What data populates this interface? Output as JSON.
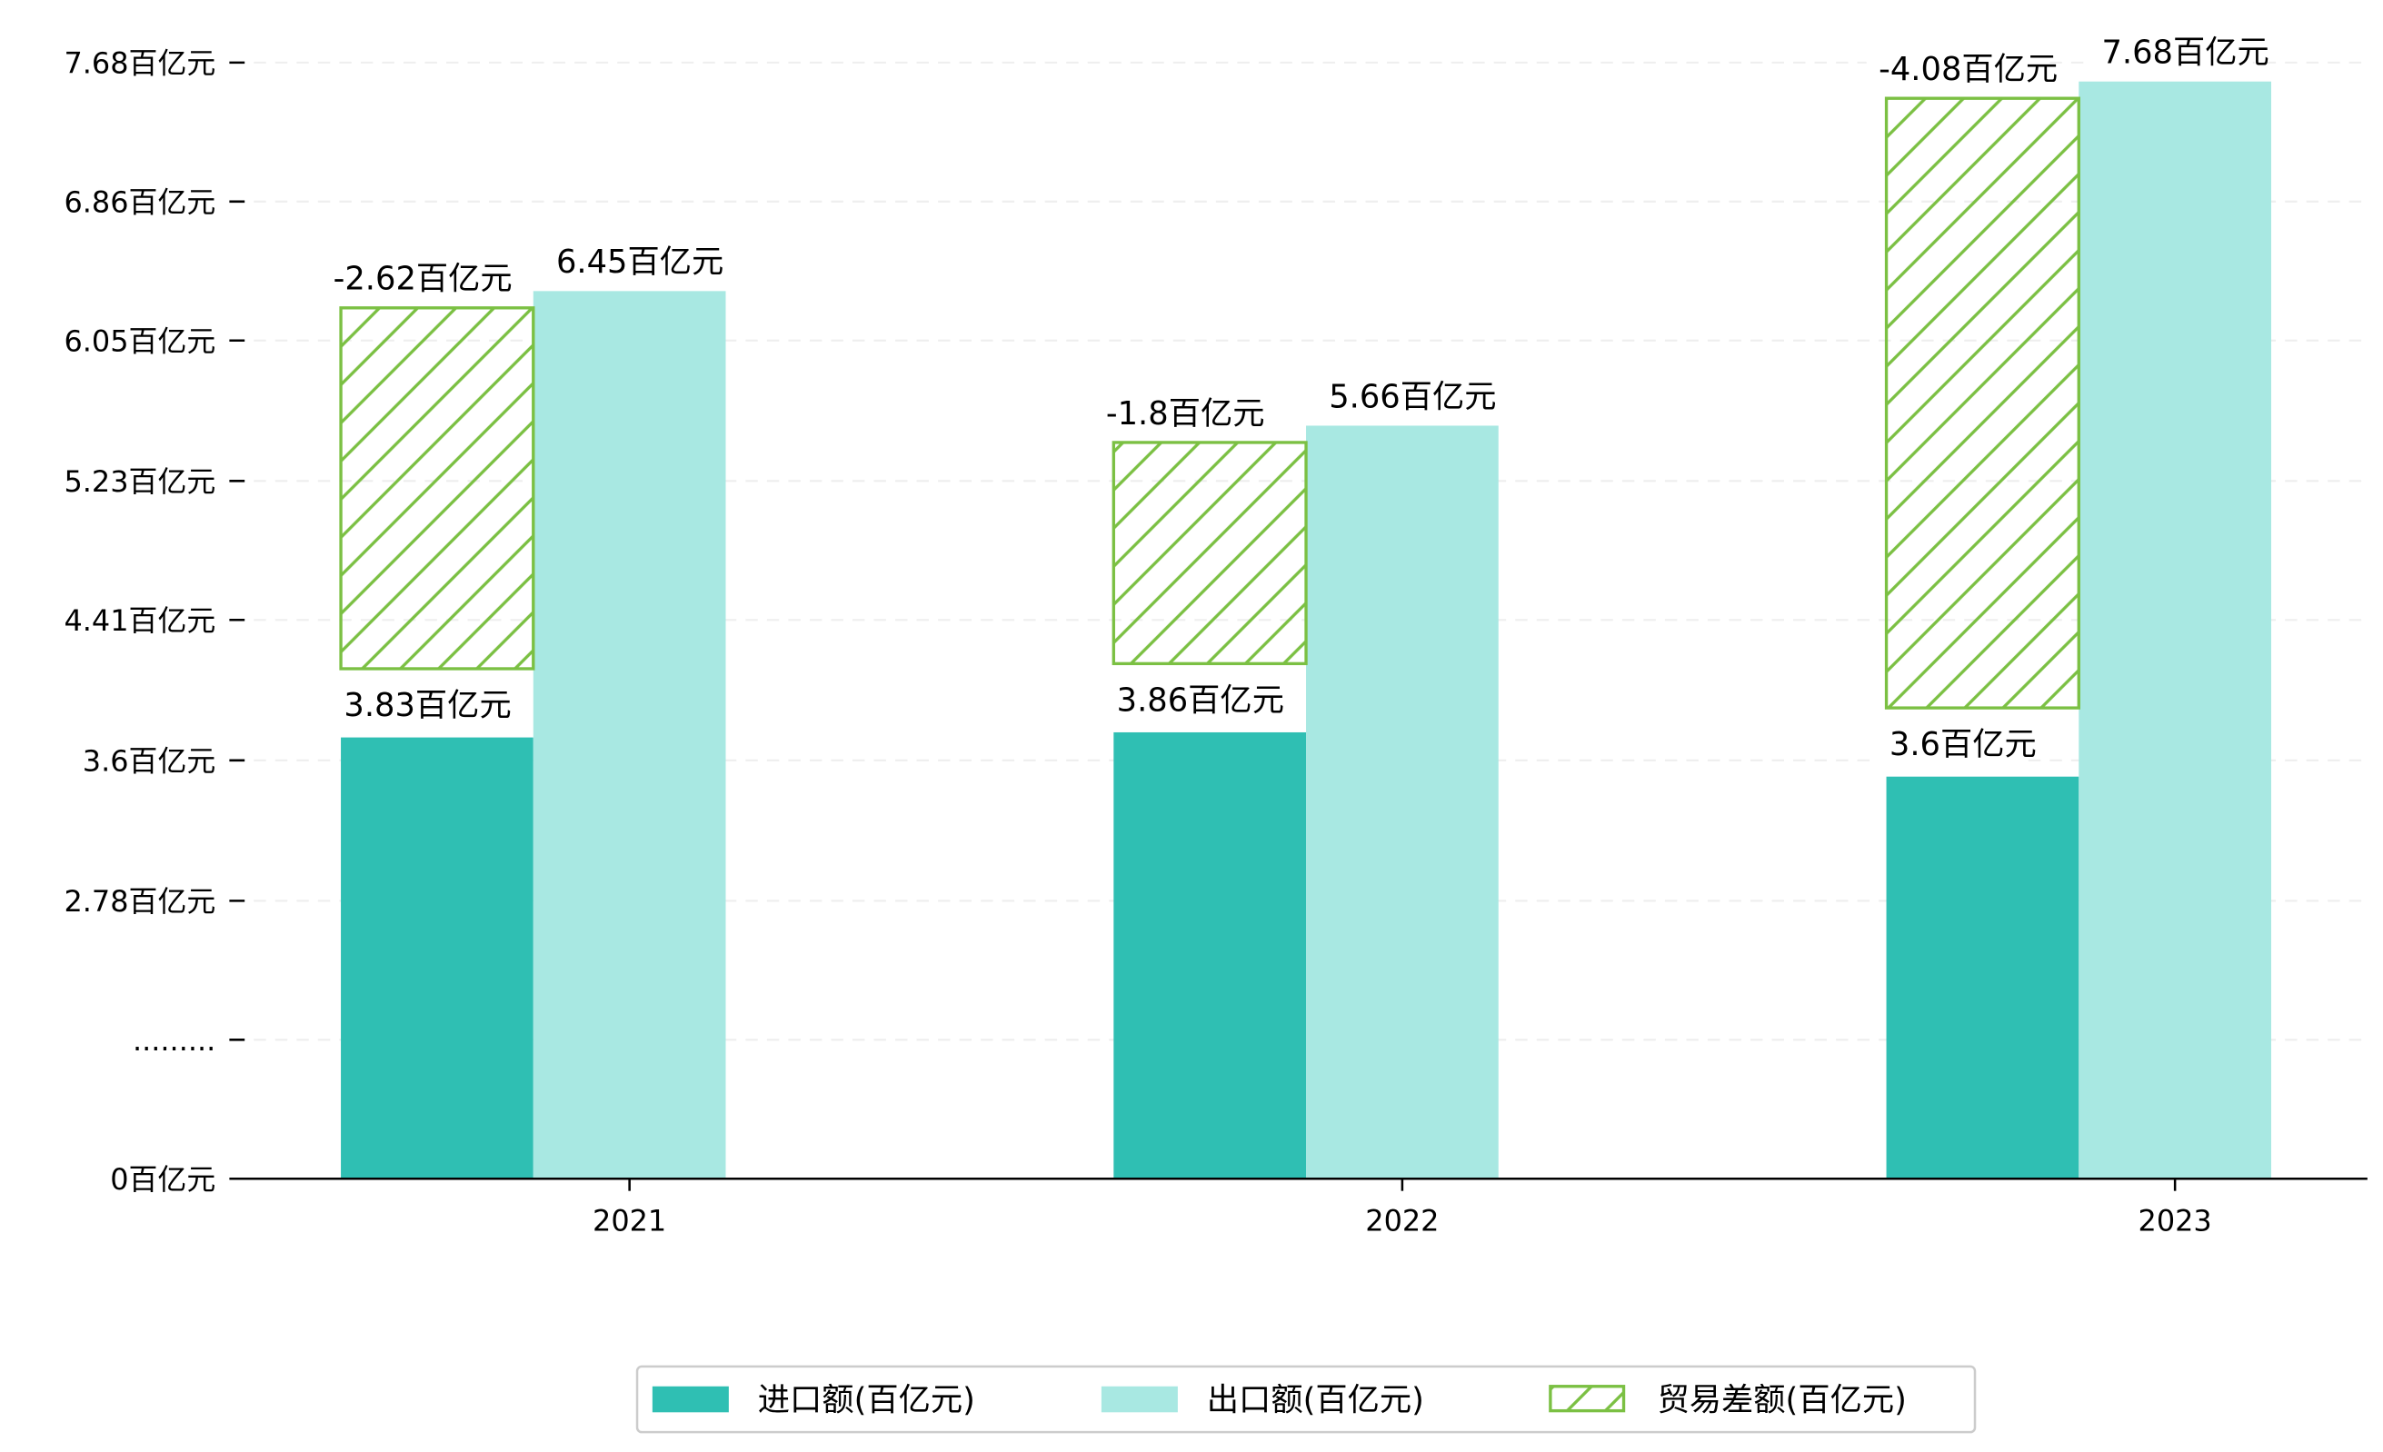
{
  "chart_data": {
    "type": "bar",
    "categories": [
      "2021",
      "2022",
      "2023"
    ],
    "series": [
      {
        "name": "进口额(百亿元)",
        "values": [
          3.83,
          3.86,
          3.6
        ],
        "labels": [
          "3.83百亿元",
          "3.86百亿元",
          "3.6百亿元"
        ],
        "color": "#2fbfb3",
        "style": "solid"
      },
      {
        "name": "出口额(百亿元)",
        "values": [
          6.45,
          5.66,
          7.68
        ],
        "labels": [
          "6.45百亿元",
          "5.66百亿元",
          "7.68百亿元"
        ],
        "color": "#a8e8e2",
        "style": "solid"
      },
      {
        "name": "贸易差额(百亿元)",
        "values": [
          -2.62,
          -1.8,
          -4.08
        ],
        "labels": [
          "-2.62百亿元",
          "-1.8百亿元",
          "-4.08百亿元"
        ],
        "color": "#7bc043",
        "style": "hatch"
      }
    ],
    "yticks": [
      "0百亿元",
      ".........",
      "2.78百亿元",
      "3.6百亿元",
      "4.41百亿元",
      "5.23百亿元",
      "6.05百亿元",
      "6.86百亿元",
      "7.68百亿元"
    ],
    "ylim": [
      0,
      7.68
    ],
    "axis_break": true,
    "grid": true,
    "legend_position": "bottom-center"
  }
}
